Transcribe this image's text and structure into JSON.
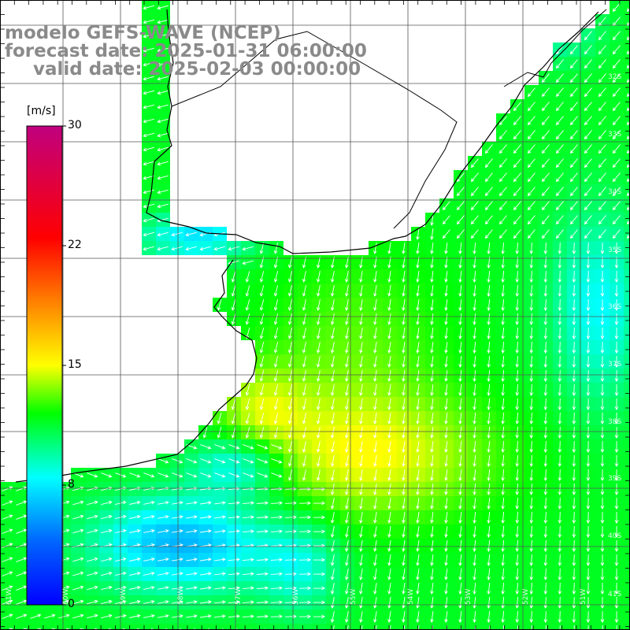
{
  "header": {
    "model": "modelo GEFS-WAVE (NCEP)",
    "forecast": "forecast date: 2025-01-31 06:00:00",
    "valid": "valid date: 2025-02-03 00:00:00"
  },
  "colorbar": {
    "units": "[m/s]",
    "ticks": [
      "30",
      "22",
      "15",
      "8",
      "0"
    ],
    "min": 0,
    "max": 30,
    "stops": [
      {
        "value": 0,
        "color": "#0000ff"
      },
      {
        "value": 4,
        "color": "#0066ff"
      },
      {
        "value": 8,
        "color": "#00ffff"
      },
      {
        "value": 12,
        "color": "#00ff00"
      },
      {
        "value": 15,
        "color": "#ffff00"
      },
      {
        "value": 19,
        "color": "#ff8000"
      },
      {
        "value": 23,
        "color": "#ff0000"
      },
      {
        "value": 30,
        "color": "#c0007f"
      }
    ]
  },
  "grid": {
    "lat_labels": [
      "32S",
      "33S",
      "34S",
      "35S",
      "36S",
      "37S",
      "38S",
      "39S",
      "40S",
      "41S"
    ],
    "lon_labels": [
      "61W",
      "60W",
      "59W",
      "58W",
      "57W",
      "56W",
      "55W",
      "54W",
      "53W",
      "52W",
      "51W"
    ]
  },
  "colors": {
    "land": "#ffffff",
    "gridline": "#555555",
    "coastline": "#000000",
    "vector": "#ffffff",
    "title": "#8a8a8a"
  }
}
